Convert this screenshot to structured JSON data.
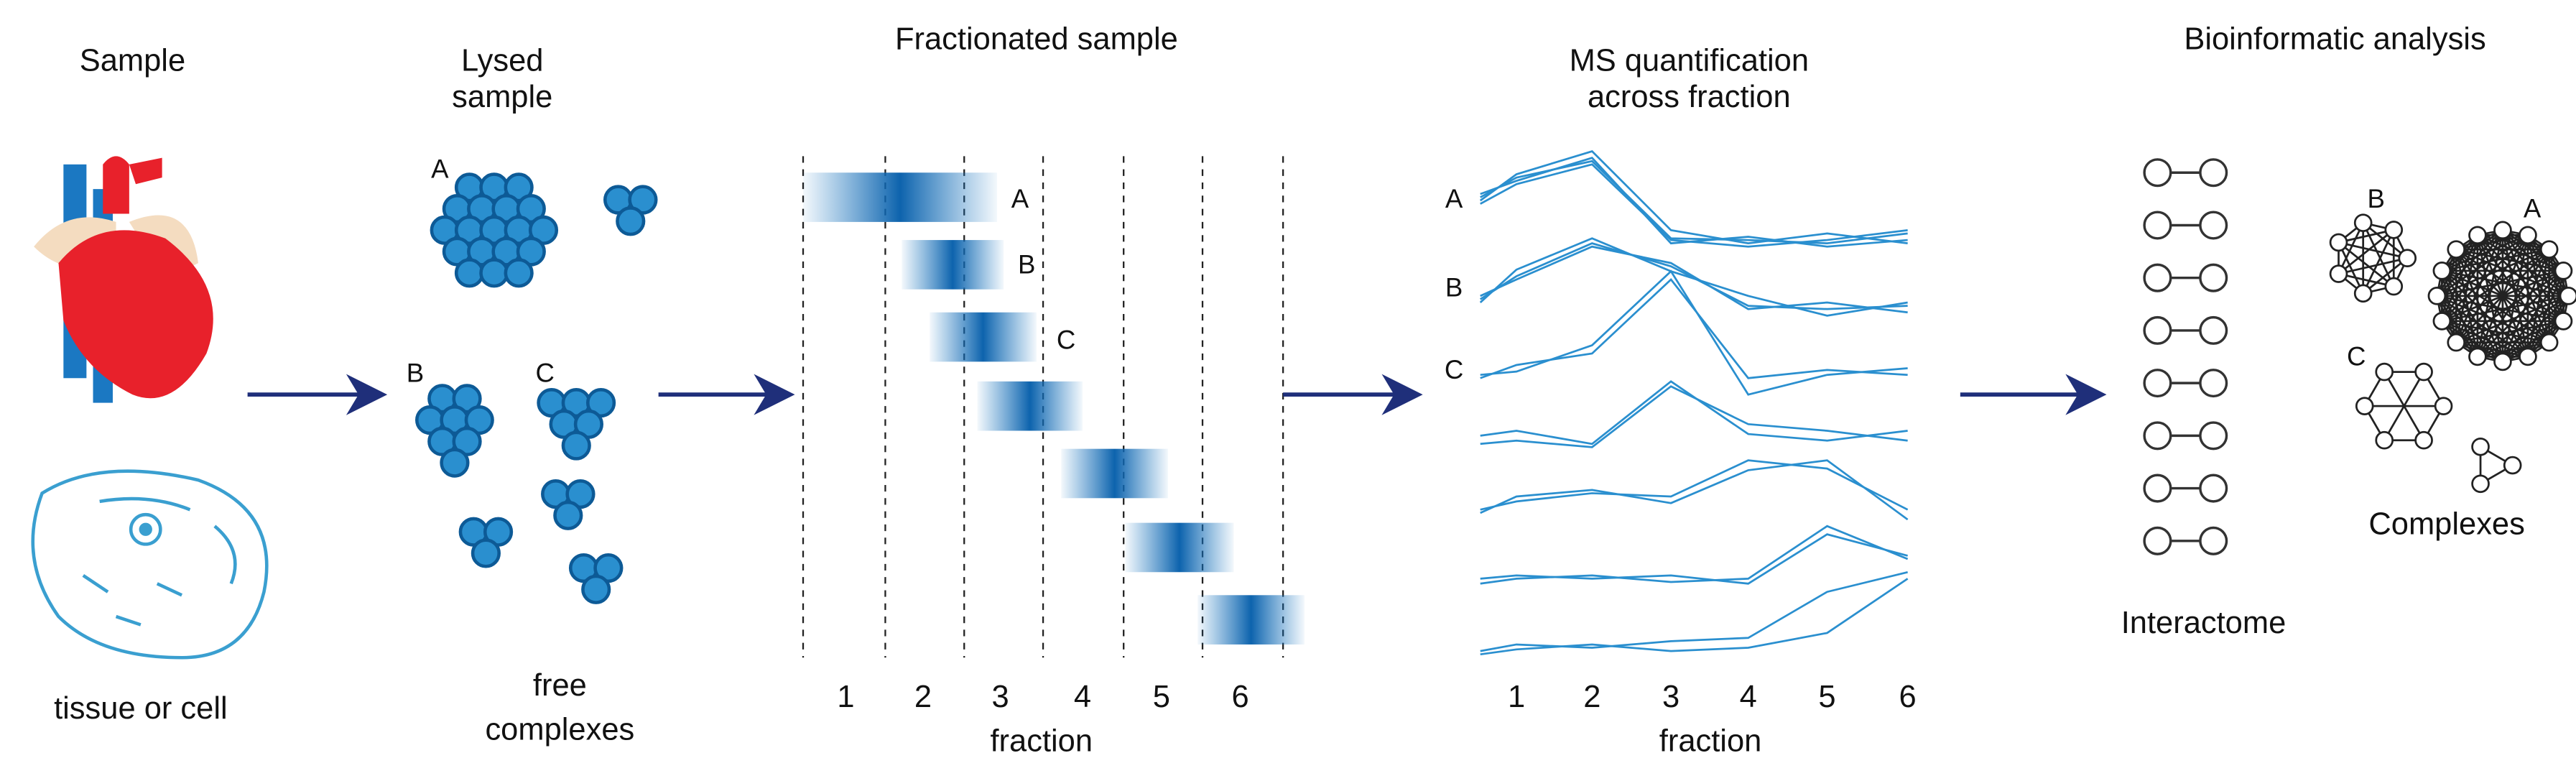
{
  "panels": [
    {
      "title": [
        "Sample"
      ],
      "caption": [
        "tissue or cell"
      ]
    },
    {
      "title": [
        "Lysed",
        "sample"
      ],
      "labels": [
        "A",
        "B",
        "C"
      ],
      "caption": [
        "free",
        "complexes"
      ]
    },
    {
      "title": [
        "Fractionated sample"
      ],
      "labels": [
        "A",
        "B",
        "C"
      ],
      "fractions": [
        1,
        2,
        3,
        4,
        5,
        6
      ],
      "axis_label": "fraction"
    },
    {
      "title": [
        "MS quantification",
        "across fraction"
      ],
      "labels": [
        "A",
        "B",
        "C"
      ],
      "fractions": [
        1,
        2,
        3,
        4,
        5,
        6
      ],
      "axis_label": "fraction"
    },
    {
      "title": [
        "Bioinformatic analysis"
      ],
      "labels": [
        "B",
        "A",
        "C"
      ],
      "network_caption": "Complexes",
      "list_caption": "Interactome"
    }
  ]
}
